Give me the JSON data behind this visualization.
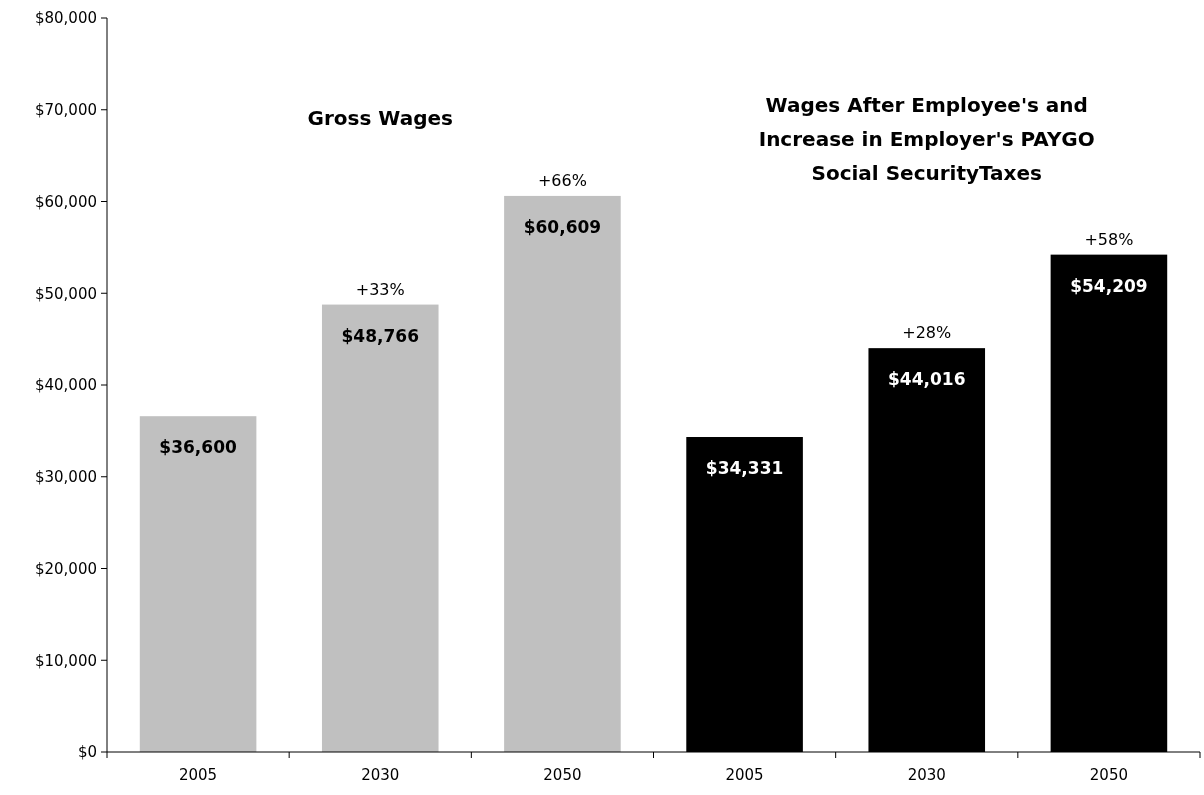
{
  "chart_data": {
    "type": "bar",
    "categories": [
      "2005",
      "2030",
      "2050",
      "2005",
      "2030",
      "2050"
    ],
    "values": [
      36600,
      48766,
      60609,
      34331,
      44016,
      54209
    ],
    "colors": [
      "#c0c0c0",
      "#c0c0c0",
      "#c0c0c0",
      "#000000",
      "#000000",
      "#000000"
    ],
    "value_labels": [
      "$36,600",
      "$48,766",
      "$60,609",
      "$34,331",
      "$44,016",
      "$54,209"
    ],
    "ylim": [
      0,
      80000
    ],
    "yticks": [
      {
        "value": 0,
        "label": "$0"
      },
      {
        "value": 10000,
        "label": "$10,000"
      },
      {
        "value": 20000,
        "label": "$20,000"
      },
      {
        "value": 30000,
        "label": "$30,000"
      },
      {
        "value": 40000,
        "label": "$40,000"
      },
      {
        "value": 50000,
        "label": "$50,000"
      },
      {
        "value": 60000,
        "label": "$60,000"
      },
      {
        "value": 70000,
        "label": "$70,000"
      },
      {
        "value": 80000,
        "label": "$80,000"
      }
    ],
    "annotations": [
      "Gross Wages",
      "Wages After Employee's and\nIncrease in Employer's PAYGO\nSocial SecurityTaxes",
      "+33%",
      "+66%",
      "+28%",
      "+58%"
    ],
    "grid": false
  }
}
